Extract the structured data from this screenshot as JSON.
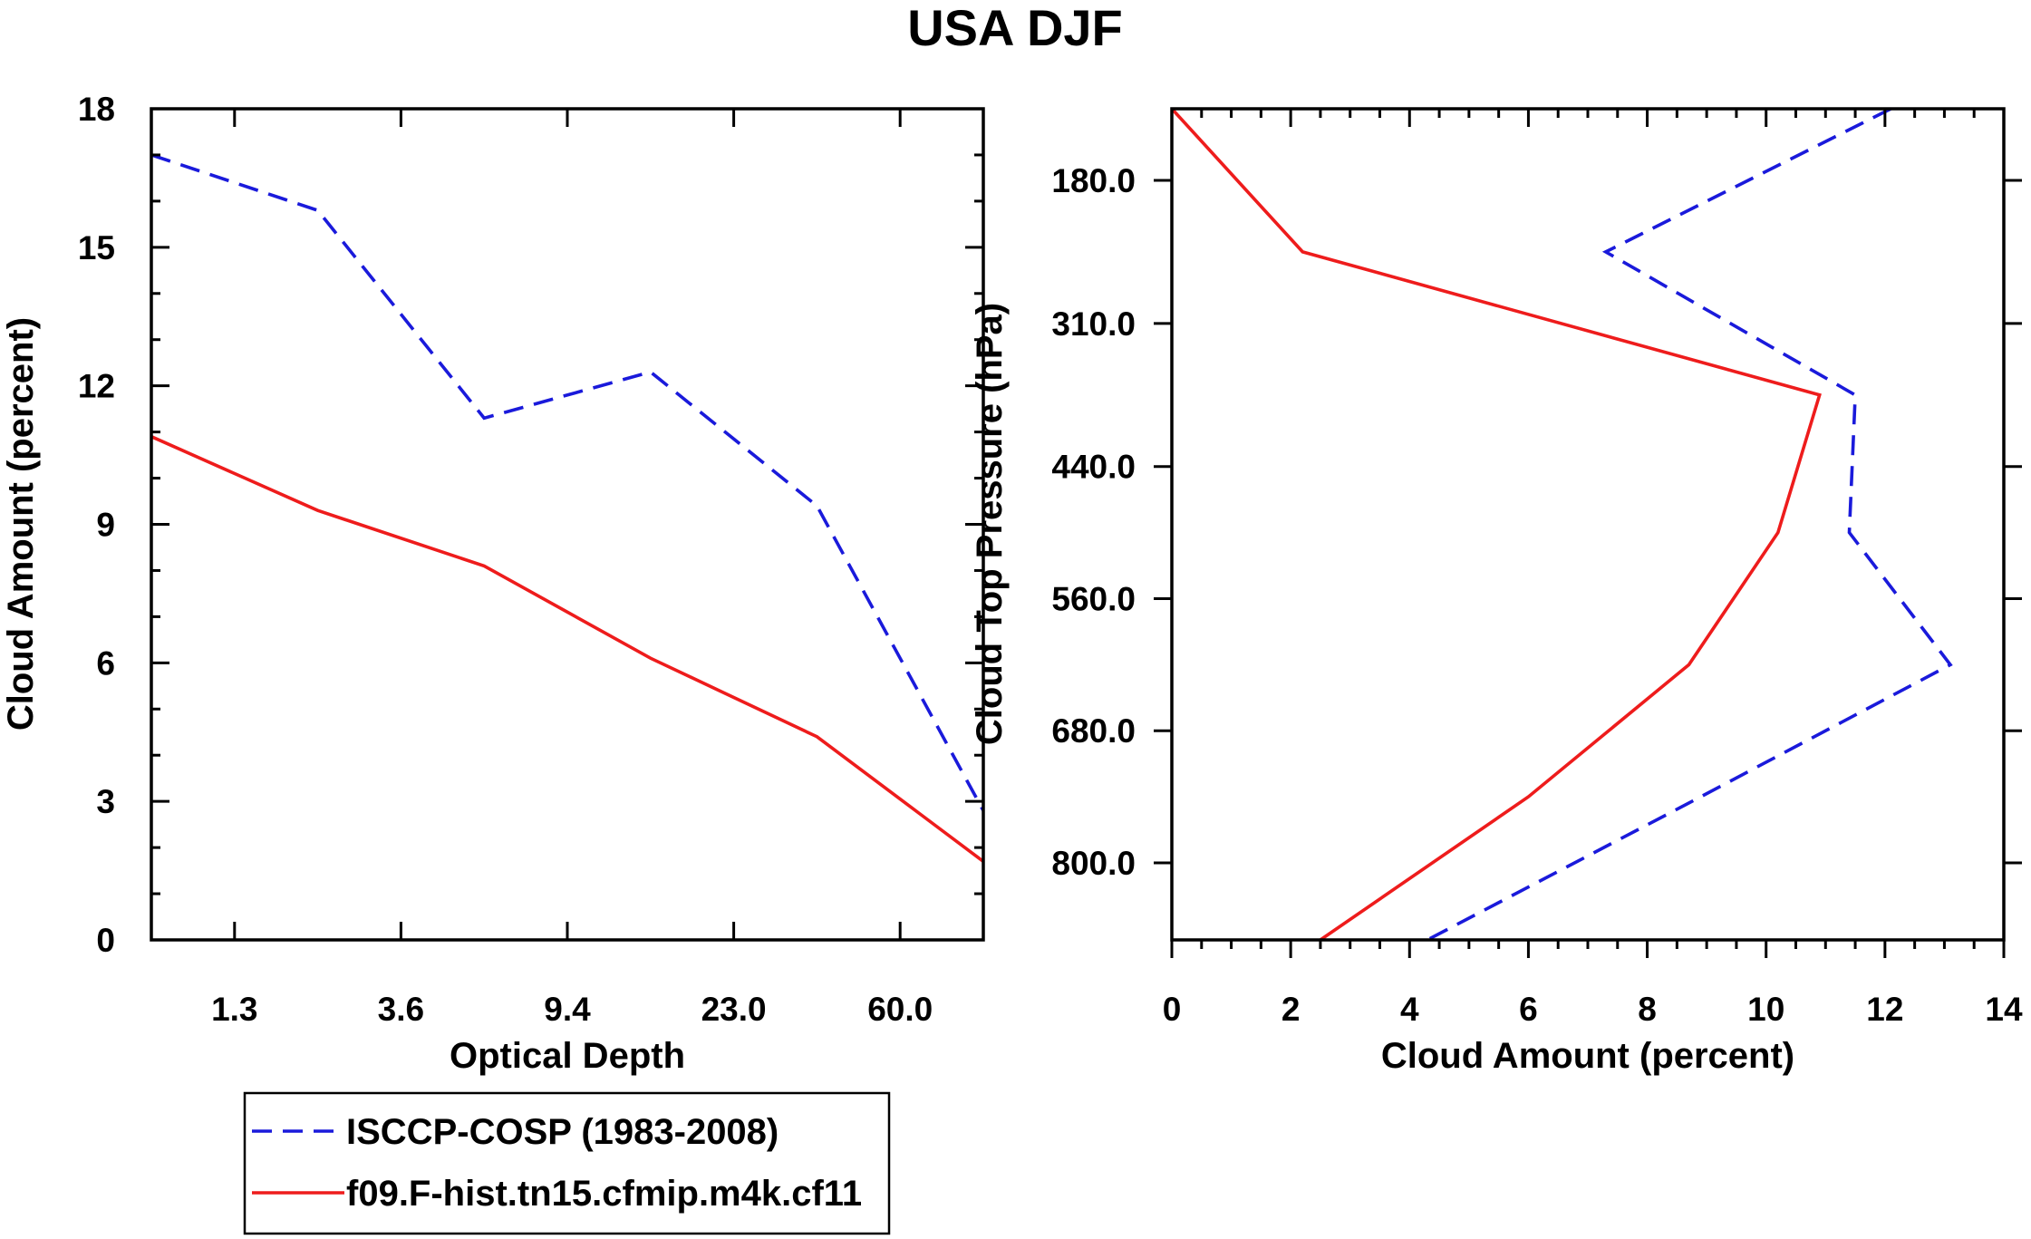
{
  "chart_data": [
    {
      "type": "line",
      "title": "USA DJF",
      "xlabel": "Optical Depth",
      "ylabel": "Cloud Amount (percent)",
      "xaxis": "bin index (categorical optical depth bins)",
      "xlim": [
        0,
        5
      ],
      "ylim": [
        0,
        18
      ],
      "x_tick_labels": [
        "1.3",
        "3.6",
        "9.4",
        "23.0",
        "60.0"
      ],
      "x_tick_positions": [
        0.5,
        1.5,
        2.5,
        3.5,
        4.5
      ],
      "y_ticks": [
        0,
        3,
        6,
        9,
        12,
        15,
        18
      ],
      "x": [
        0,
        1,
        2,
        3,
        4,
        5
      ],
      "series": [
        {
          "name": "ISCCP-COSP (1983-2008)",
          "color": "#1a1adb",
          "style": "dashed",
          "values": [
            17.0,
            15.8,
            11.3,
            12.3,
            9.4,
            2.8
          ]
        },
        {
          "name": "f09.F-hist.tn15.cfmip.m4k.cf11",
          "color": "#ee1c1c",
          "style": "solid",
          "values": [
            10.9,
            9.3,
            8.1,
            6.1,
            4.4,
            1.7
          ]
        }
      ]
    },
    {
      "type": "line",
      "title": "",
      "xlabel": "Cloud Amount (percent)",
      "ylabel": "Cloud Top Pressure (hPa)",
      "xlim": [
        0,
        14
      ],
      "ylim_pressure_top_to_bottom": [
        115,
        870
      ],
      "x_ticks": [
        0,
        2,
        4,
        6,
        8,
        10,
        12,
        14
      ],
      "y_tick_labels": [
        "180.0",
        "310.0",
        "440.0",
        "560.0",
        "680.0",
        "800.0"
      ],
      "y_ticks": [
        180,
        310,
        440,
        560,
        680,
        800
      ],
      "y_points": [
        115,
        245,
        375,
        500,
        620,
        740,
        870
      ],
      "series": [
        {
          "name": "ISCCP-COSP (1983-2008)",
          "color": "#1a1adb",
          "style": "dashed",
          "values": [
            12.1,
            7.3,
            11.5,
            11.4,
            13.1,
            8.9,
            4.3
          ]
        },
        {
          "name": "f09.F-hist.tn15.cfmip.m4k.cf11",
          "color": "#ee1c1c",
          "style": "solid",
          "values": [
            0.0,
            2.2,
            10.9,
            10.2,
            8.7,
            6.0,
            2.5
          ]
        }
      ]
    }
  ],
  "legend": {
    "items": [
      {
        "label": "ISCCP-COSP (1983-2008)",
        "color": "#1a1adb",
        "style": "dashed"
      },
      {
        "label": "f09.F-hist.tn15.cfmip.m4k.cf11",
        "color": "#ee1c1c",
        "style": "solid"
      }
    ]
  }
}
